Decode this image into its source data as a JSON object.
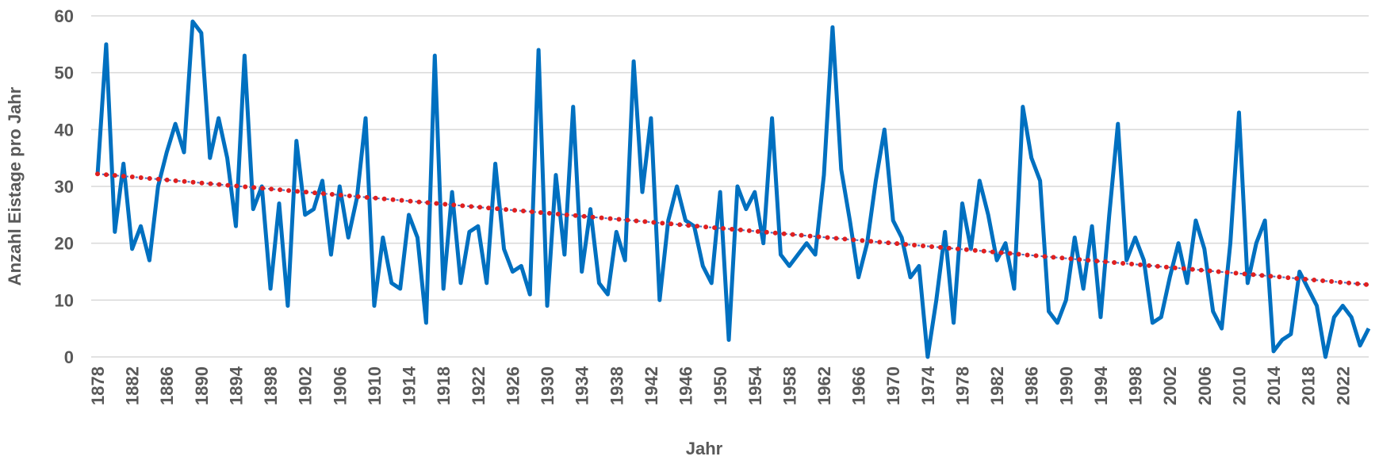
{
  "chart_data": {
    "type": "line",
    "x_label": "Jahr",
    "y_label": "Anzahl Eistage pro Jahr",
    "categories": [
      "1878",
      null,
      null,
      null,
      "1882",
      null,
      null,
      null,
      "1886",
      null,
      null,
      null,
      "1890",
      null,
      null,
      null,
      "1894",
      null,
      null,
      null,
      "1898",
      null,
      null,
      null,
      "1902",
      null,
      null,
      null,
      "1906",
      null,
      null,
      null,
      "1910",
      null,
      null,
      null,
      "1914",
      null,
      null,
      null,
      "1918",
      null,
      null,
      null,
      "1922",
      null,
      null,
      null,
      "1926",
      null,
      null,
      null,
      "1930",
      null,
      null,
      null,
      "1934",
      null,
      null,
      null,
      "1938",
      null,
      null,
      null,
      "1942",
      null,
      null,
      null,
      "1946",
      null,
      null,
      null,
      "1950",
      null,
      null,
      null,
      "1954",
      null,
      null,
      null,
      "1958",
      null,
      null,
      null,
      "1962",
      null,
      null,
      null,
      "1966",
      null,
      null,
      null,
      "1970",
      null,
      null,
      null,
      "1974",
      null,
      null,
      null,
      "1978",
      null,
      null,
      null,
      "1982",
      null,
      null,
      null,
      "1986",
      null,
      null,
      null,
      "1990",
      null,
      null,
      null,
      "1994",
      null,
      null,
      null,
      "1998",
      null,
      null,
      null,
      "2002",
      null,
      null,
      null,
      "2006",
      null,
      null,
      null,
      "2010",
      null,
      null,
      null,
      "2014",
      null,
      null,
      null,
      "2018",
      null,
      null,
      null,
      "2022",
      null,
      null,
      null
    ],
    "series": [
      {
        "color": "#0070c0",
        "values": [
          32,
          55,
          22,
          34,
          19,
          23,
          17,
          30,
          36,
          41,
          36,
          59,
          57,
          35,
          42,
          35,
          23,
          53,
          26,
          30,
          12,
          27,
          9,
          38,
          25,
          26,
          31,
          18,
          30,
          21,
          28,
          42,
          9,
          21,
          13,
          12,
          25,
          21,
          6,
          53,
          12,
          29,
          13,
          22,
          23,
          13,
          34,
          19,
          15,
          16,
          11,
          54,
          9,
          32,
          18,
          44,
          15,
          26,
          13,
          11,
          22,
          17,
          52,
          29,
          42,
          10,
          24,
          30,
          24,
          23,
          16,
          13,
          29,
          3,
          30,
          26,
          29,
          20,
          42,
          18,
          16,
          18,
          20,
          18,
          32,
          58,
          33,
          24,
          14,
          20,
          31,
          40,
          24,
          21,
          14,
          16,
          0,
          10,
          22,
          6,
          27,
          19,
          31,
          25,
          17,
          20,
          12,
          44,
          35,
          31,
          8,
          6,
          10,
          21,
          12,
          23,
          7,
          25,
          41,
          17,
          21,
          17,
          6,
          7,
          14,
          20,
          13,
          24,
          19,
          8,
          5,
          20,
          43,
          13,
          20,
          24,
          1,
          3,
          4,
          15,
          12,
          9,
          0,
          7,
          9,
          7,
          2,
          5
        ]
      }
    ],
    "trend": {
      "start": 32.2,
      "end": 12.7,
      "color": "#e02020",
      "line_color": "#4472c4"
    },
    "ylim": [
      0,
      60
    ],
    "yticks": [
      0,
      10,
      20,
      30,
      40,
      50,
      60
    ],
    "grid": true
  }
}
